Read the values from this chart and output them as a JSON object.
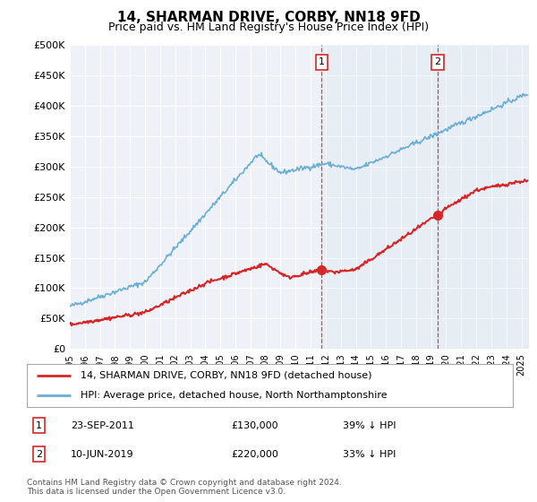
{
  "title": "14, SHARMAN DRIVE, CORBY, NN18 9FD",
  "subtitle": "Price paid vs. HM Land Registry's House Price Index (HPI)",
  "ylabel_ticks": [
    "£0",
    "£50K",
    "£100K",
    "£150K",
    "£200K",
    "£250K",
    "£300K",
    "£350K",
    "£400K",
    "£450K",
    "£500K"
  ],
  "ylim": [
    0,
    500000
  ],
  "xlim_start": 1995.0,
  "xlim_end": 2025.5,
  "hpi_color": "#6baed6",
  "price_color": "#d62728",
  "dashed_color": "#d62728",
  "background_plot": "#eef2f8",
  "background_fig": "#ffffff",
  "legend_line1": "14, SHARMAN DRIVE, CORBY, NN18 9FD (detached house)",
  "legend_line2": "HPI: Average price, detached house, North Northamptonshire",
  "transaction1_label": "1",
  "transaction1_date": "23-SEP-2011",
  "transaction1_price": "£130,000",
  "transaction1_pct": "39% ↓ HPI",
  "transaction1_x": 2011.73,
  "transaction1_y": 130000,
  "transaction2_label": "2",
  "transaction2_date": "10-JUN-2019",
  "transaction2_price": "£220,000",
  "transaction2_pct": "33% ↓ HPI",
  "transaction2_x": 2019.44,
  "transaction2_y": 220000,
  "footer": "Contains HM Land Registry data © Crown copyright and database right 2024.\nThis data is licensed under the Open Government Licence v3.0."
}
